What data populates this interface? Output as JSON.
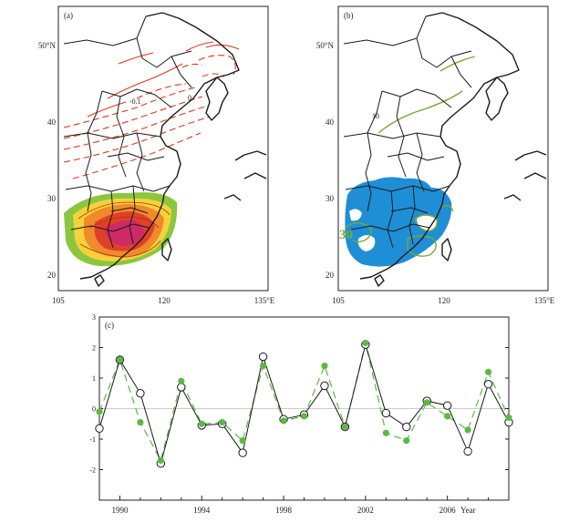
{
  "panels": {
    "a": {
      "label": "(a)",
      "lat_labels": [
        "50°N",
        "40",
        "30",
        "20"
      ],
      "lon_labels": [
        "105",
        "120",
        "135°E"
      ],
      "contour_labels": [
        "-0.1",
        "0"
      ]
    },
    "b": {
      "label": "(b)",
      "lat_labels": [
        "50°N",
        "40",
        "30",
        "20"
      ],
      "lon_labels": [
        "105",
        "120",
        "135°E"
      ],
      "contour_labels": [
        "10",
        "30"
      ]
    }
  },
  "colors": {
    "neg_contour": "#d83a1e",
    "shade_outer": "#8cc63f",
    "shade_yellow": "#f5d23b",
    "shade_orange": "#f08a2a",
    "shade_red": "#e0402a",
    "shade_magenta": "#cf2a66",
    "blue_fill": "#1e8fd6",
    "green_line": "#7aa832",
    "series_black": "#1a1a1a",
    "series_green": "#5cb843"
  },
  "chart_data": {
    "label": "(c)",
    "type": "line",
    "x_range": [
      1989,
      2009
    ],
    "ylim": [
      -3,
      3
    ],
    "yticks": [
      -2,
      -1,
      0,
      1,
      2,
      3
    ],
    "xtick_labels": [
      "1990",
      "1994",
      "1998",
      "2002",
      "2006"
    ],
    "xlabel": "Year",
    "series": [
      {
        "style": "black-open-circles",
        "x": [
          1989,
          1990,
          1991,
          1992,
          1993,
          1994,
          1995,
          1996,
          1997,
          1998,
          1999,
          2000,
          2001,
          2002,
          2003,
          2004,
          2005,
          2006,
          2007,
          2008,
          2009
        ],
        "values": [
          -0.65,
          1.6,
          0.5,
          -1.8,
          0.7,
          -0.55,
          -0.5,
          -1.45,
          1.7,
          -0.35,
          -0.2,
          0.75,
          -0.6,
          2.1,
          -0.15,
          -0.6,
          0.25,
          0.1,
          -1.4,
          0.8,
          -0.45
        ]
      },
      {
        "style": "green-filled-circles-dashed",
        "x": [
          1989,
          1990,
          1991,
          1992,
          1993,
          1994,
          1995,
          1996,
          1997,
          1998,
          1999,
          2000,
          2001,
          2002,
          2003,
          2004,
          2005,
          2006,
          2007,
          2008,
          2009
        ],
        "values": [
          -0.1,
          1.6,
          -0.45,
          -1.7,
          0.9,
          -0.5,
          -0.45,
          -1.05,
          1.4,
          -0.4,
          -0.25,
          1.4,
          -0.6,
          2.15,
          -0.8,
          -1.05,
          0.2,
          -0.25,
          -0.7,
          1.2,
          -0.3
        ]
      }
    ]
  }
}
